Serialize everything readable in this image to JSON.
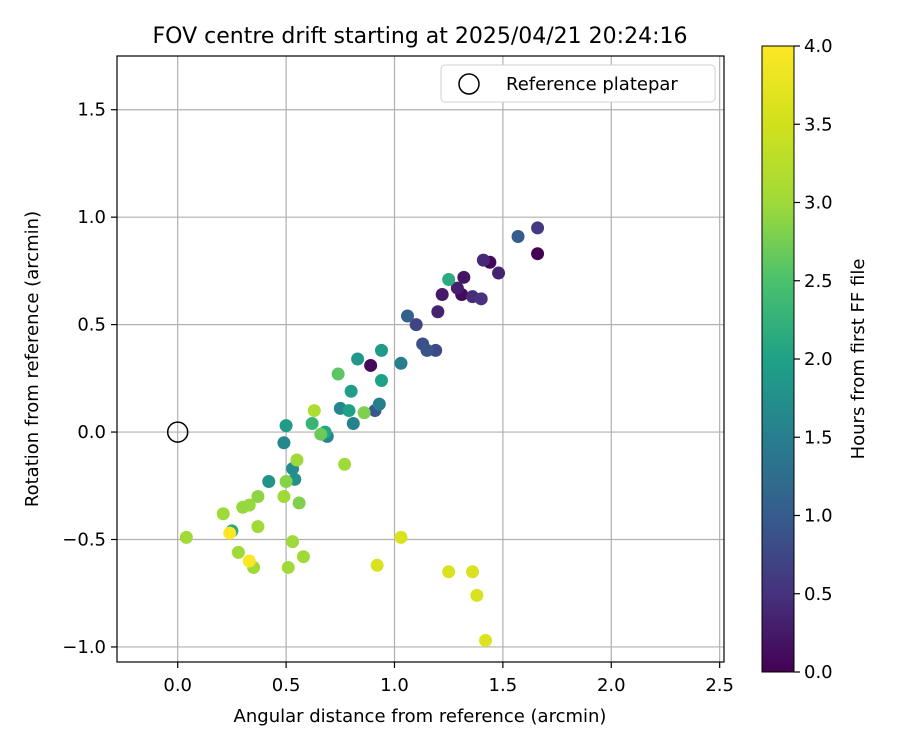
{
  "chart_data": {
    "type": "scatter",
    "title": "FOV centre drift starting at 2025/04/21 20:24:16",
    "xlabel": "Angular distance from reference (arcmin)",
    "ylabel": "Rotation from reference (arcmin)",
    "xlim": [
      -0.28,
      2.52
    ],
    "ylim": [
      -1.07,
      1.75
    ],
    "xticks": [
      0.0,
      0.5,
      1.0,
      1.5,
      2.0,
      2.5
    ],
    "xtick_labels": [
      "0.0",
      "0.5",
      "1.0",
      "1.5",
      "2.0",
      "2.5"
    ],
    "yticks": [
      -1.0,
      -0.5,
      0.0,
      0.5,
      1.0,
      1.5
    ],
    "ytick_labels": [
      "−1.0",
      "−0.5",
      "0.0",
      "0.5",
      "1.0",
      "1.5"
    ],
    "grid": true,
    "legend": {
      "position": "top-right",
      "entries": [
        "Reference platepar"
      ]
    },
    "reference_point": {
      "name": "Reference platepar",
      "x": 0.0,
      "y": 0.0,
      "marker": "open-circle"
    },
    "colorbar": {
      "label": "Hours from first FF file",
      "colormap": "viridis",
      "range": [
        0.0,
        4.0
      ],
      "ticks": [
        0.0,
        0.5,
        1.0,
        1.5,
        2.0,
        2.5,
        3.0,
        3.5,
        4.0
      ],
      "tick_labels": [
        "0.0",
        "0.5",
        "1.0",
        "1.5",
        "2.0",
        "2.5",
        "3.0",
        "3.5",
        "4.0"
      ]
    },
    "points": [
      {
        "x": 1.66,
        "y": 0.83,
        "c": 0.0
      },
      {
        "x": 1.44,
        "y": 0.79,
        "c": 0.05
      },
      {
        "x": 0.89,
        "y": 0.31,
        "c": 0.08
      },
      {
        "x": 1.31,
        "y": 0.64,
        "c": 0.1
      },
      {
        "x": 1.32,
        "y": 0.72,
        "c": 0.2
      },
      {
        "x": 1.22,
        "y": 0.64,
        "c": 0.25
      },
      {
        "x": 1.29,
        "y": 0.67,
        "c": 0.3
      },
      {
        "x": 1.2,
        "y": 0.56,
        "c": 0.35
      },
      {
        "x": 1.48,
        "y": 0.74,
        "c": 0.35
      },
      {
        "x": 1.41,
        "y": 0.8,
        "c": 0.4
      },
      {
        "x": 1.36,
        "y": 0.63,
        "c": 0.45
      },
      {
        "x": 1.4,
        "y": 0.62,
        "c": 0.5
      },
      {
        "x": 1.66,
        "y": 0.95,
        "c": 0.6
      },
      {
        "x": 1.1,
        "y": 0.5,
        "c": 0.7
      },
      {
        "x": 1.19,
        "y": 0.38,
        "c": 0.8
      },
      {
        "x": 1.13,
        "y": 0.41,
        "c": 0.85
      },
      {
        "x": 1.15,
        "y": 0.38,
        "c": 0.9
      },
      {
        "x": 0.91,
        "y": 0.1,
        "c": 0.95
      },
      {
        "x": 1.57,
        "y": 0.91,
        "c": 1.0
      },
      {
        "x": 1.06,
        "y": 0.54,
        "c": 1.05
      },
      {
        "x": 1.03,
        "y": 0.32,
        "c": 1.5
      },
      {
        "x": 0.93,
        "y": 0.13,
        "c": 1.5
      },
      {
        "x": 0.81,
        "y": 0.04,
        "c": 1.55
      },
      {
        "x": 0.75,
        "y": 0.11,
        "c": 1.6
      },
      {
        "x": 0.69,
        "y": -0.02,
        "c": 1.6
      },
      {
        "x": 0.49,
        "y": -0.05,
        "c": 1.65
      },
      {
        "x": 0.53,
        "y": -0.17,
        "c": 1.7
      },
      {
        "x": 0.54,
        "y": -0.22,
        "c": 1.75
      },
      {
        "x": 0.42,
        "y": -0.23,
        "c": 1.8
      },
      {
        "x": 0.83,
        "y": 0.34,
        "c": 1.85
      },
      {
        "x": 0.94,
        "y": 0.38,
        "c": 1.9
      },
      {
        "x": 0.5,
        "y": 0.03,
        "c": 1.9
      },
      {
        "x": 0.8,
        "y": 0.19,
        "c": 1.95
      },
      {
        "x": 0.94,
        "y": 0.24,
        "c": 2.0
      },
      {
        "x": 0.79,
        "y": 0.1,
        "c": 2.0
      },
      {
        "x": 0.68,
        "y": 0.0,
        "c": 2.05
      },
      {
        "x": 0.25,
        "y": -0.46,
        "c": 2.1
      },
      {
        "x": 1.25,
        "y": 0.71,
        "c": 2.15
      },
      {
        "x": 0.62,
        "y": 0.04,
        "c": 2.3
      },
      {
        "x": 0.74,
        "y": 0.27,
        "c": 2.6
      },
      {
        "x": 0.66,
        "y": -0.01,
        "c": 2.7
      },
      {
        "x": 0.86,
        "y": 0.09,
        "c": 2.8
      },
      {
        "x": 0.56,
        "y": -0.33,
        "c": 2.8
      },
      {
        "x": 0.5,
        "y": -0.23,
        "c": 2.85
      },
      {
        "x": 0.37,
        "y": -0.3,
        "c": 2.9
      },
      {
        "x": 0.33,
        "y": -0.34,
        "c": 2.95
      },
      {
        "x": 0.3,
        "y": -0.35,
        "c": 2.95
      },
      {
        "x": 0.55,
        "y": -0.13,
        "c": 3.0
      },
      {
        "x": 0.77,
        "y": -0.15,
        "c": 3.0
      },
      {
        "x": 0.49,
        "y": -0.3,
        "c": 3.0
      },
      {
        "x": 0.21,
        "y": -0.38,
        "c": 3.0
      },
      {
        "x": 0.37,
        "y": -0.44,
        "c": 3.0
      },
      {
        "x": 0.04,
        "y": -0.49,
        "c": 3.0
      },
      {
        "x": 0.28,
        "y": -0.56,
        "c": 3.0
      },
      {
        "x": 0.53,
        "y": -0.51,
        "c": 3.0
      },
      {
        "x": 0.58,
        "y": -0.58,
        "c": 3.0
      },
      {
        "x": 0.35,
        "y": -0.63,
        "c": 3.0
      },
      {
        "x": 0.51,
        "y": -0.63,
        "c": 3.0
      },
      {
        "x": 0.63,
        "y": 0.1,
        "c": 3.15
      },
      {
        "x": 1.03,
        "y": -0.49,
        "c": 3.6
      },
      {
        "x": 0.92,
        "y": -0.62,
        "c": 3.6
      },
      {
        "x": 1.25,
        "y": -0.65,
        "c": 3.6
      },
      {
        "x": 1.36,
        "y": -0.65,
        "c": 3.6
      },
      {
        "x": 1.38,
        "y": -0.76,
        "c": 3.6
      },
      {
        "x": 1.42,
        "y": -0.97,
        "c": 3.65
      },
      {
        "x": 0.33,
        "y": -0.6,
        "c": 3.95
      },
      {
        "x": 0.24,
        "y": -0.47,
        "c": 4.0
      }
    ]
  }
}
